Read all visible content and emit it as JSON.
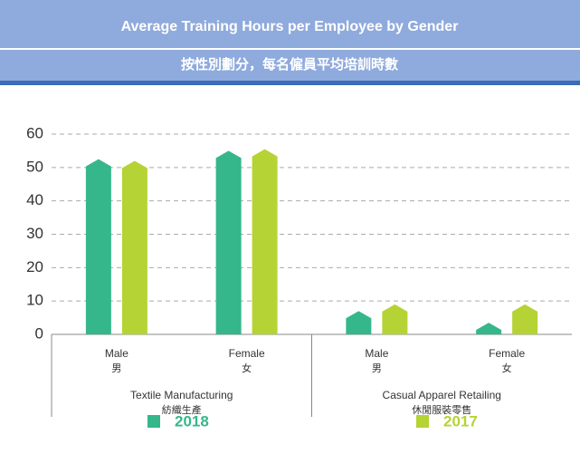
{
  "chart_data": {
    "type": "bar",
    "title": "Average Training Hours per Employee by Gender",
    "subtitle": "按性別劃分，每名僱員平均培訓時數",
    "categories": [
      "Male",
      "Female",
      "Male",
      "Female"
    ],
    "categories_zh": [
      "男",
      "女",
      "男",
      "女"
    ],
    "groups": [
      {
        "name": "Textile Manufacturing",
        "name_zh": "紡織生產"
      },
      {
        "name": "Casual Apparel Retailing",
        "name_zh": "休閒服裝零售"
      }
    ],
    "series": [
      {
        "name": "2018",
        "color": "#35b78b",
        "values": [
          52.5,
          55,
          7,
          3.5
        ]
      },
      {
        "name": "2017",
        "color": "#b5d334",
        "values": [
          52,
          55.5,
          9,
          9
        ]
      }
    ],
    "ylim": [
      0,
      60
    ],
    "yticks": [
      0,
      10,
      20,
      30,
      40,
      50,
      60
    ],
    "grid": true
  }
}
